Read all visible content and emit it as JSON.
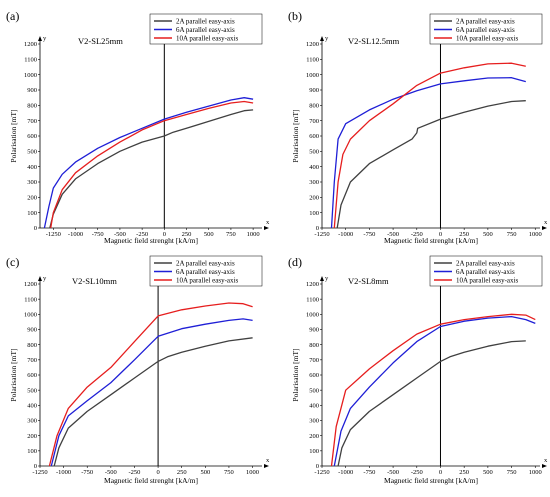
{
  "chart_data": [
    {
      "type": "line",
      "panel_label": "(a)",
      "subtitle": "V2-SL25mm",
      "xlabel": "Magnetic field strenght [kA/m]",
      "ylabel": "Polarisation [mT]",
      "x_axis_letter": "x",
      "y_axis_letter": "y",
      "xlim": [
        -1400,
        1100
      ],
      "ylim": [
        0,
        1200
      ],
      "xticks": [
        -1250,
        -1000,
        -750,
        -500,
        -250,
        0,
        250,
        500,
        750,
        1000
      ],
      "yticks": [
        0,
        100,
        200,
        300,
        400,
        500,
        600,
        700,
        800,
        900,
        1000,
        1100,
        1200
      ],
      "legend_position": "top-right",
      "grid": false,
      "series": [
        {
          "name": "2A parallel easy-axis",
          "color": "#404040",
          "points": [
            [
              -1290,
              0
            ],
            [
              -1250,
              90
            ],
            [
              -1150,
              220
            ],
            [
              -1000,
              320
            ],
            [
              -750,
              420
            ],
            [
              -500,
              500
            ],
            [
              -250,
              560
            ],
            [
              0,
              600
            ],
            [
              100,
              625
            ],
            [
              250,
              650
            ],
            [
              500,
              695
            ],
            [
              750,
              740
            ],
            [
              900,
              765
            ],
            [
              1000,
              770
            ]
          ]
        },
        {
          "name": "6A parallel easy-axis",
          "color": "#1f1fd6",
          "points": [
            [
              -1350,
              0
            ],
            [
              -1300,
              140
            ],
            [
              -1250,
              260
            ],
            [
              -1150,
              350
            ],
            [
              -1000,
              430
            ],
            [
              -750,
              520
            ],
            [
              -500,
              590
            ],
            [
              -250,
              650
            ],
            [
              0,
              710
            ],
            [
              250,
              755
            ],
            [
              500,
              795
            ],
            [
              750,
              835
            ],
            [
              900,
              850
            ],
            [
              1000,
              840
            ]
          ]
        },
        {
          "name": "10A parallel easy-axis",
          "color": "#e61e1e",
          "points": [
            [
              -1280,
              0
            ],
            [
              -1250,
              100
            ],
            [
              -1150,
              250
            ],
            [
              -1000,
              360
            ],
            [
              -750,
              470
            ],
            [
              -500,
              560
            ],
            [
              -250,
              640
            ],
            [
              0,
              700
            ],
            [
              250,
              740
            ],
            [
              500,
              780
            ],
            [
              750,
              815
            ],
            [
              900,
              825
            ],
            [
              1000,
              815
            ]
          ]
        }
      ]
    },
    {
      "type": "line",
      "panel_label": "(b)",
      "subtitle": "V2-SL12.5mm",
      "xlabel": "Magnetic field strenght [kA/m]",
      "ylabel": "Polarisation [mT]",
      "x_axis_letter": "x",
      "y_axis_letter": "y",
      "xlim": [
        -1250,
        1050
      ],
      "ylim": [
        0,
        1200
      ],
      "xticks": [
        -1250,
        -1000,
        -750,
        -500,
        -250,
        0,
        250,
        500,
        750,
        1000
      ],
      "yticks": [
        0,
        100,
        200,
        300,
        400,
        500,
        600,
        700,
        800,
        900,
        1000,
        1100,
        1200
      ],
      "legend_position": "top-right",
      "grid": false,
      "series": [
        {
          "name": "2A parallel easy-axis",
          "color": "#404040",
          "points": [
            [
              -1090,
              0
            ],
            [
              -1050,
              150
            ],
            [
              -950,
              300
            ],
            [
              -750,
              420
            ],
            [
              -500,
              510
            ],
            [
              -300,
              580
            ],
            [
              -250,
              620
            ],
            [
              -240,
              650
            ],
            [
              0,
              710
            ],
            [
              250,
              755
            ],
            [
              500,
              795
            ],
            [
              750,
              825
            ],
            [
              900,
              830
            ]
          ]
        },
        {
          "name": "6A parallel easy-axis",
          "color": "#1f1fd6",
          "points": [
            [
              -1150,
              0
            ],
            [
              -1120,
              300
            ],
            [
              -1080,
              580
            ],
            [
              -1000,
              680
            ],
            [
              -750,
              770
            ],
            [
              -500,
              840
            ],
            [
              -250,
              895
            ],
            [
              0,
              940
            ],
            [
              250,
              960
            ],
            [
              500,
              978
            ],
            [
              750,
              980
            ],
            [
              900,
              955
            ]
          ]
        },
        {
          "name": "10A parallel easy-axis",
          "color": "#e61e1e",
          "points": [
            [
              -1120,
              0
            ],
            [
              -1080,
              300
            ],
            [
              -1030,
              480
            ],
            [
              -950,
              580
            ],
            [
              -750,
              700
            ],
            [
              -500,
              810
            ],
            [
              -250,
              930
            ],
            [
              0,
              1010
            ],
            [
              250,
              1045
            ],
            [
              500,
              1070
            ],
            [
              750,
              1075
            ],
            [
              900,
              1055
            ]
          ]
        }
      ]
    },
    {
      "type": "line",
      "panel_label": "(c)",
      "subtitle": "V2-SL10mm",
      "xlabel": "Magnetic field strenght [kA/m]",
      "ylabel": "Polarisation [mT]",
      "x_axis_letter": "x",
      "y_axis_letter": "y",
      "xlim": [
        -1250,
        1100
      ],
      "ylim": [
        0,
        1200
      ],
      "xticks": [
        -1250,
        -1000,
        -750,
        -500,
        -250,
        0,
        250,
        500,
        750,
        1000
      ],
      "yticks": [
        0,
        100,
        200,
        300,
        400,
        500,
        600,
        700,
        800,
        900,
        1000,
        1100,
        1200
      ],
      "legend_position": "top-right",
      "grid": false,
      "series": [
        {
          "name": "2A parallel easy-axis",
          "color": "#404040",
          "points": [
            [
              -1100,
              0
            ],
            [
              -1050,
              120
            ],
            [
              -950,
              250
            ],
            [
              -750,
              360
            ],
            [
              -500,
              470
            ],
            [
              -250,
              580
            ],
            [
              0,
              690
            ],
            [
              100,
              720
            ],
            [
              250,
              750
            ],
            [
              500,
              790
            ],
            [
              750,
              825
            ],
            [
              1000,
              845
            ]
          ]
        },
        {
          "name": "6A parallel easy-axis",
          "color": "#1f1fd6",
          "points": [
            [
              -1130,
              0
            ],
            [
              -1050,
              200
            ],
            [
              -950,
              330
            ],
            [
              -750,
              430
            ],
            [
              -500,
              550
            ],
            [
              -250,
              700
            ],
            [
              0,
              855
            ],
            [
              250,
              905
            ],
            [
              500,
              935
            ],
            [
              750,
              960
            ],
            [
              900,
              970
            ],
            [
              1000,
              960
            ]
          ]
        },
        {
          "name": "10A parallel easy-axis",
          "color": "#e61e1e",
          "points": [
            [
              -1150,
              0
            ],
            [
              -1070,
              200
            ],
            [
              -950,
              380
            ],
            [
              -750,
              520
            ],
            [
              -500,
              650
            ],
            [
              -250,
              820
            ],
            [
              0,
              990
            ],
            [
              250,
              1030
            ],
            [
              500,
              1055
            ],
            [
              750,
              1075
            ],
            [
              900,
              1070
            ],
            [
              1000,
              1050
            ]
          ]
        }
      ]
    },
    {
      "type": "line",
      "panel_label": "(d)",
      "subtitle": "V2-SL8mm",
      "xlabel": "Magnetic field strenght [kA/m]",
      "ylabel": "Polarisation [mT]",
      "x_axis_letter": "x",
      "y_axis_letter": "y",
      "xlim": [
        -1250,
        1050
      ],
      "ylim": [
        0,
        1200
      ],
      "xticks": [
        -1250,
        -1000,
        -750,
        -500,
        -250,
        0,
        250,
        500,
        750,
        1000
      ],
      "yticks": [
        0,
        100,
        200,
        300,
        400,
        500,
        600,
        700,
        800,
        900,
        1000,
        1100,
        1200
      ],
      "legend_position": "top-right",
      "grid": false,
      "series": [
        {
          "name": "2A parallel easy-axis",
          "color": "#404040",
          "points": [
            [
              -1080,
              0
            ],
            [
              -1040,
              120
            ],
            [
              -950,
              240
            ],
            [
              -750,
              360
            ],
            [
              -500,
              470
            ],
            [
              -250,
              580
            ],
            [
              0,
              690
            ],
            [
              100,
              720
            ],
            [
              250,
              750
            ],
            [
              500,
              790
            ],
            [
              750,
              820
            ],
            [
              900,
              825
            ]
          ]
        },
        {
          "name": "6A parallel easy-axis",
          "color": "#1f1fd6",
          "points": [
            [
              -1120,
              0
            ],
            [
              -1050,
              230
            ],
            [
              -950,
              380
            ],
            [
              -750,
              520
            ],
            [
              -500,
              680
            ],
            [
              -250,
              820
            ],
            [
              0,
              920
            ],
            [
              250,
              955
            ],
            [
              500,
              975
            ],
            [
              750,
              985
            ],
            [
              900,
              965
            ],
            [
              1000,
              940
            ]
          ]
        },
        {
          "name": "10A parallel easy-axis",
          "color": "#e61e1e",
          "points": [
            [
              -1150,
              0
            ],
            [
              -1100,
              260
            ],
            [
              -1000,
              500
            ],
            [
              -750,
              640
            ],
            [
              -500,
              760
            ],
            [
              -250,
              870
            ],
            [
              0,
              935
            ],
            [
              250,
              965
            ],
            [
              500,
              985
            ],
            [
              750,
              1000
            ],
            [
              900,
              995
            ],
            [
              1000,
              965
            ]
          ]
        }
      ]
    }
  ]
}
